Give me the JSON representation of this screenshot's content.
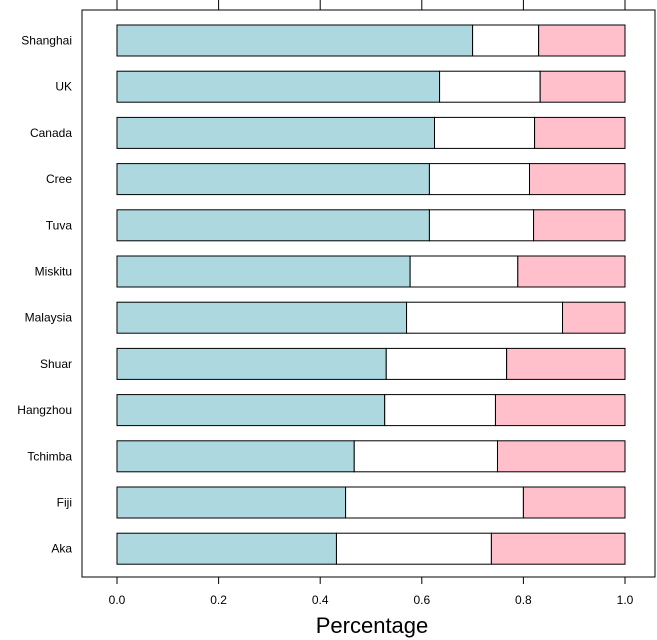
{
  "chart_data": {
    "type": "bar",
    "orientation": "horizontal",
    "stacked": true,
    "title": "",
    "xlabel": "Percentage",
    "ylabel": "",
    "xlim": [
      0,
      1
    ],
    "xticks": [
      "0.0",
      "0.2",
      "0.4",
      "0.6",
      "0.8",
      "1.0"
    ],
    "grid": false,
    "legend": "none",
    "categories": [
      "Shanghai",
      "UK",
      "Canada",
      "Cree",
      "Tuva",
      "Miskitu",
      "Malaysia",
      "Shuar",
      "Hangzhou",
      "Tchimba",
      "Fiji",
      "Aka"
    ],
    "series": [
      {
        "values": [
          0.7,
          0.635,
          0.625,
          0.615,
          0.615,
          0.577,
          0.57,
          0.53,
          0.527,
          0.467,
          0.45,
          0.432
        ],
        "color": "#add8e0"
      },
      {
        "values": [
          0.13,
          0.198,
          0.197,
          0.197,
          0.205,
          0.212,
          0.307,
          0.237,
          0.218,
          0.282,
          0.35,
          0.305
        ],
        "color": "#ffffff"
      },
      {
        "values": [
          0.17,
          0.167,
          0.178,
          0.188,
          0.18,
          0.211,
          0.123,
          0.233,
          0.255,
          0.251,
          0.2,
          0.263
        ],
        "color": "#ffc0cb"
      }
    ]
  }
}
